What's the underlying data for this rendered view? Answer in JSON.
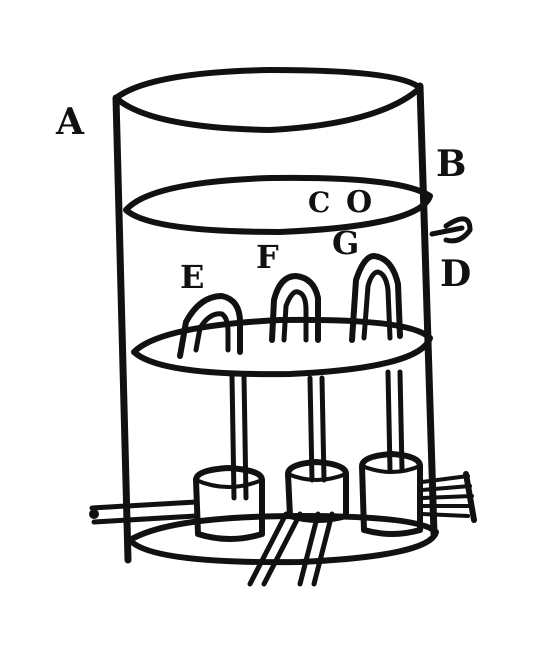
{
  "labels": {
    "A": "A",
    "B": "B",
    "C": "C",
    "O": "O",
    "D": "D",
    "E": "E",
    "F": "F",
    "G": "G"
  },
  "colors": {
    "ink": "#111111",
    "paper": "#ffffff"
  }
}
